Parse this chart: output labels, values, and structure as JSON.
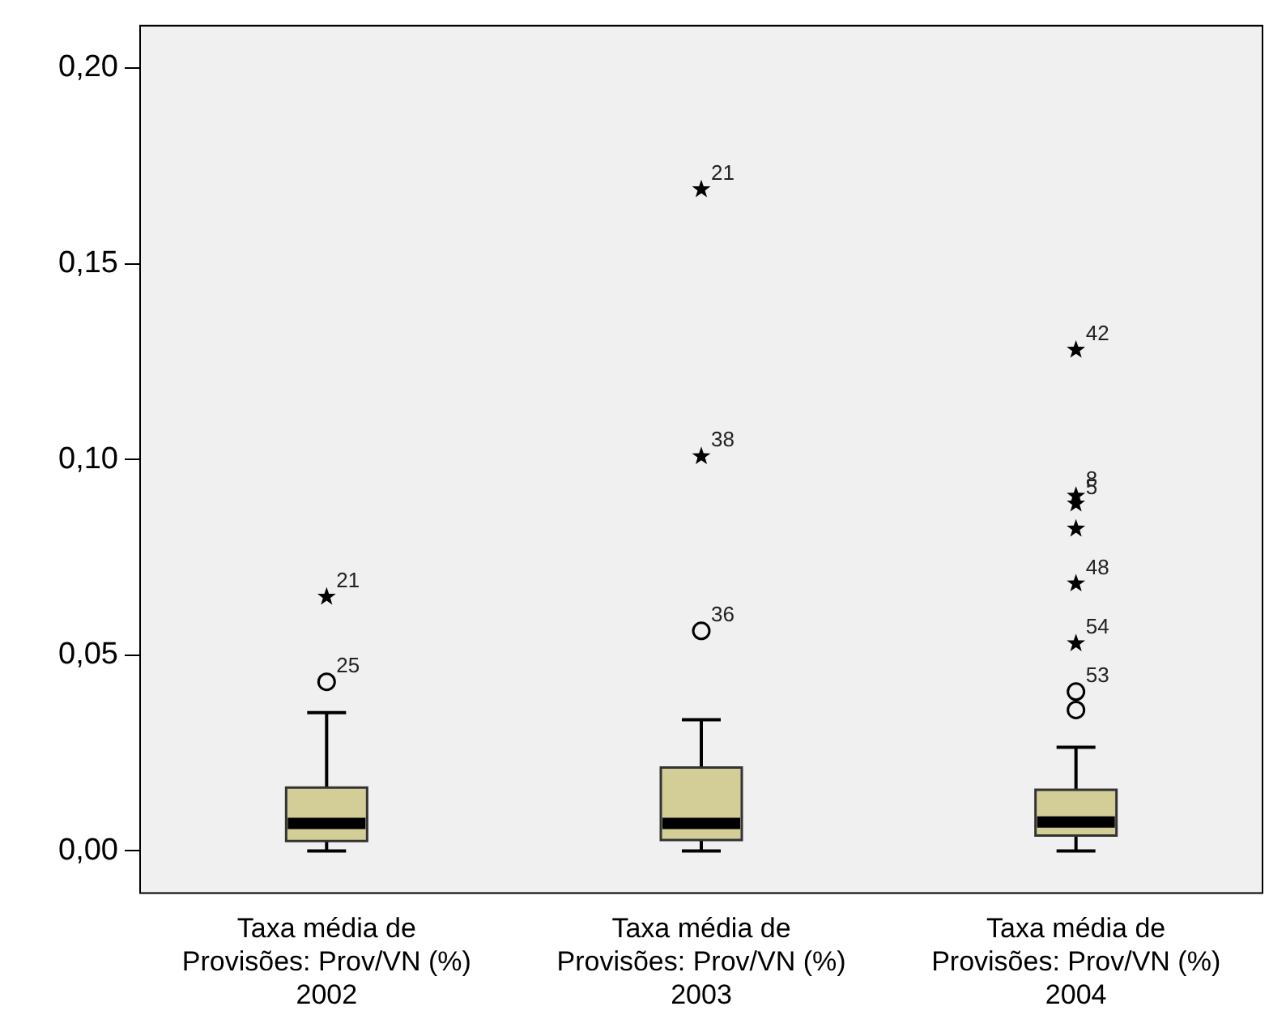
{
  "chart_data": {
    "type": "box",
    "categories": [
      "Taxa média de Provisões: Prov/VN (%) 2002",
      "Taxa média de Provisões: Prov/VN (%) 2003",
      "Taxa média de Provisões: Prov/VN (%) 2004"
    ],
    "series": [
      {
        "color": "#d3ce98",
        "boxes": [
          {
            "low": 0,
            "q1": 0.0025,
            "median": 0.007,
            "q3": 0.0162,
            "high": 0.0353
          },
          {
            "low": 0,
            "q1": 0.0028,
            "median": 0.007,
            "q3": 0.0213,
            "high": 0.0335
          },
          {
            "low": 0,
            "q1": 0.0039,
            "median": 0.0074,
            "q3": 0.0156,
            "high": 0.0265
          }
        ]
      },
      {
        "type": "scatter",
        "color": "#000000",
        "marker": "circle",
        "x": [
          "Taxa média de Provisões: Prov/VN (%) 2002",
          "Taxa média de Provisões: Prov/VN (%) 2003",
          "Taxa média de Provisões: Prov/VN (%) 2004",
          "Taxa média de Provisões: Prov/VN (%) 2004"
        ],
        "values": [
          0.0432,
          0.0562,
          0.0407,
          0.036
        ]
      },
      {
        "type": "scatter",
        "color": "#000000",
        "marker": "star",
        "x": [
          "Taxa média de Provisões: Prov/VN (%) 2002",
          "Taxa média de Provisões: Prov/VN (%) 2003",
          "Taxa média de Provisões: Prov/VN (%) 2003",
          "Taxa média de Provisões: Prov/VN (%) 2004",
          "Taxa média de Provisões: Prov/VN (%) 2004",
          "Taxa média de Provisões: Prov/VN (%) 2004",
          "Taxa média de Provisões: Prov/VN (%) 2004",
          "Taxa média de Provisões: Prov/VN (%) 2004",
          "Taxa média de Provisões: Prov/VN (%) 2004"
        ],
        "values": [
          0.0649,
          0.169,
          0.1008,
          0.128,
          0.0907,
          0.0887,
          0.0823,
          0.0683,
          0.053
        ]
      }
    ],
    "ylim": [
      -0.011,
      0.211
    ],
    "yticks": [
      {
        "value": 0,
        "label": "0,00"
      },
      {
        "value": 0.05,
        "label": "0,05"
      },
      {
        "value": 0.1,
        "label": "0,10"
      },
      {
        "value": 0.15,
        "label": "0,15"
      },
      {
        "value": 0.2,
        "label": "0,20"
      }
    ],
    "annotations": [
      {
        "text": "21",
        "x": "Taxa média de Provisões: Prov/VN (%) 2002",
        "y": 0.0649
      },
      {
        "text": "25",
        "x": "Taxa média de Provisões: Prov/VN (%) 2002",
        "y": 0.0432
      },
      {
        "text": "21",
        "x": "Taxa média de Provisões: Prov/VN (%) 2003",
        "y": 0.169
      },
      {
        "text": "38",
        "x": "Taxa média de Provisões: Prov/VN (%) 2003",
        "y": 0.1008
      },
      {
        "text": "36",
        "x": "Taxa média de Provisões: Prov/VN (%) 2003",
        "y": 0.0562
      },
      {
        "text": "42",
        "x": "Taxa média de Provisões: Prov/VN (%) 2004",
        "y": 0.128
      },
      {
        "text": "8",
        "x": "Taxa média de Provisões: Prov/VN (%) 2004",
        "y": 0.0907
      },
      {
        "text": "5",
        "x": "Taxa média de Provisões: Prov/VN (%) 2004",
        "y": 0.0887
      },
      {
        "text": "48",
        "x": "Taxa média de Provisões: Prov/VN (%) 2004",
        "y": 0.0683
      },
      {
        "text": "54",
        "x": "Taxa média de Provisões: Prov/VN (%) 2004",
        "y": 0.053
      },
      {
        "text": "53",
        "x": "Taxa média de Provisões: Prov/VN (%) 2004",
        "y": 0.0407
      }
    ],
    "grid": false,
    "legend": false
  }
}
